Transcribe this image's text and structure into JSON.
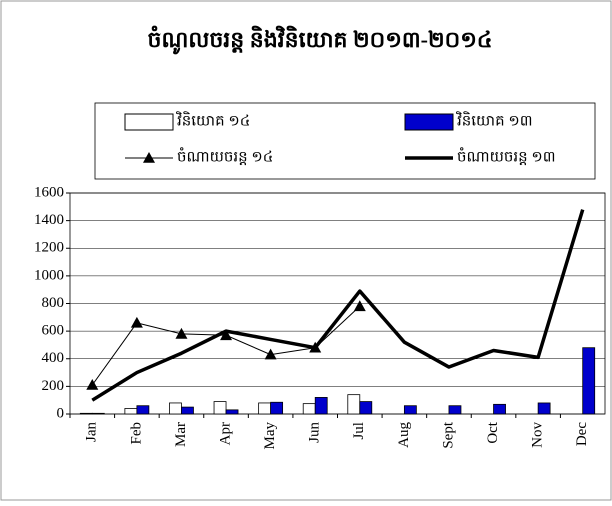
{
  "chart_data": {
    "type": "bar-line",
    "title": "ចំណូលចរន្ត និងវិនិយោគ ២០១៣-២០១៤",
    "categories": [
      "Jan",
      "Feb",
      "Mar",
      "Apr",
      "May",
      "Jun",
      "Jul",
      "Aug",
      "Sept",
      "Oct",
      "Nov",
      "Dec"
    ],
    "series": [
      {
        "name": "វិនិយោគ ១៤",
        "type": "bar",
        "color": "#ffffff",
        "values": [
          5,
          40,
          80,
          90,
          80,
          75,
          140,
          null,
          null,
          null,
          null,
          null
        ]
      },
      {
        "name": "វិនិយោគ ១៣",
        "type": "bar",
        "color": "#0000cc",
        "values": [
          5,
          60,
          50,
          30,
          85,
          120,
          90,
          60,
          60,
          70,
          80,
          480
        ]
      },
      {
        "name": "ចំណាយចរន្ត ១៤",
        "type": "line",
        "color": "#000000",
        "line_width": 1,
        "marker": "triangle",
        "values": [
          210,
          660,
          580,
          570,
          430,
          480,
          780,
          null,
          null,
          null,
          null,
          null
        ]
      },
      {
        "name": "ចំណាយចរន្ត ១៣",
        "type": "line",
        "color": "#000000",
        "line_width": 3.5,
        "values": [
          100,
          300,
          440,
          600,
          540,
          480,
          890,
          520,
          340,
          460,
          410,
          1480
        ]
      }
    ],
    "ylim": [
      0,
      1600
    ],
    "yticks": [
      0,
      200,
      400,
      600,
      800,
      1000,
      1200,
      1400,
      1600
    ],
    "grid": true
  }
}
